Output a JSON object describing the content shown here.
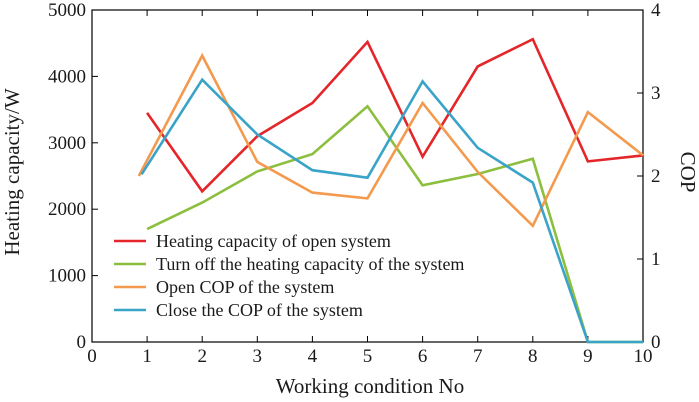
{
  "chart_data": {
    "type": "line",
    "xlabel": "Working condition No",
    "ylabel": "Heating capacity/W",
    "y2label": "COP",
    "xlim": [
      0,
      10
    ],
    "ylim": [
      0,
      5000
    ],
    "y2lim": [
      0,
      4
    ],
    "x_ticks": [
      0,
      1,
      2,
      3,
      4,
      5,
      6,
      7,
      8,
      9,
      10
    ],
    "y_ticks": [
      0,
      1000,
      2000,
      3000,
      4000,
      5000
    ],
    "y2_ticks": [
      0,
      1,
      2,
      3,
      4
    ],
    "legend_position": "lower-left",
    "series": [
      {
        "name": "Heating capacity of open system",
        "axis": "left",
        "color": "#e4262b",
        "x": [
          1,
          2,
          3,
          4,
          5,
          6,
          7,
          8,
          9,
          10
        ],
        "values": [
          3450,
          2270,
          3100,
          3600,
          4520,
          2790,
          4150,
          4560,
          2720,
          2810
        ]
      },
      {
        "name": "Turn off the heating capacity of the system",
        "axis": "left",
        "color": "#8cbf3f",
        "x": [
          1,
          2,
          3,
          4,
          5,
          6,
          7,
          8,
          9,
          10
        ],
        "values": [
          1700,
          2100,
          2570,
          2830,
          3550,
          2360,
          2530,
          2760,
          0,
          0
        ]
      },
      {
        "name": "Open COP of the system",
        "axis": "right",
        "color": "#f39a4e",
        "x": [
          0.85,
          2,
          3,
          4,
          5,
          6,
          7,
          8,
          9,
          10
        ],
        "values": [
          2.0,
          3.45,
          2.17,
          1.8,
          1.73,
          2.88,
          2.05,
          1.4,
          2.77,
          2.25
        ]
      },
      {
        "name": "Close the COP of the system",
        "axis": "right",
        "color": "#3aa3c8",
        "x": [
          0.9,
          2,
          3,
          4,
          5,
          6,
          7,
          8,
          9,
          10
        ],
        "values": [
          2.02,
          3.16,
          2.5,
          2.07,
          1.98,
          3.14,
          2.34,
          1.92,
          0,
          0
        ]
      }
    ]
  }
}
